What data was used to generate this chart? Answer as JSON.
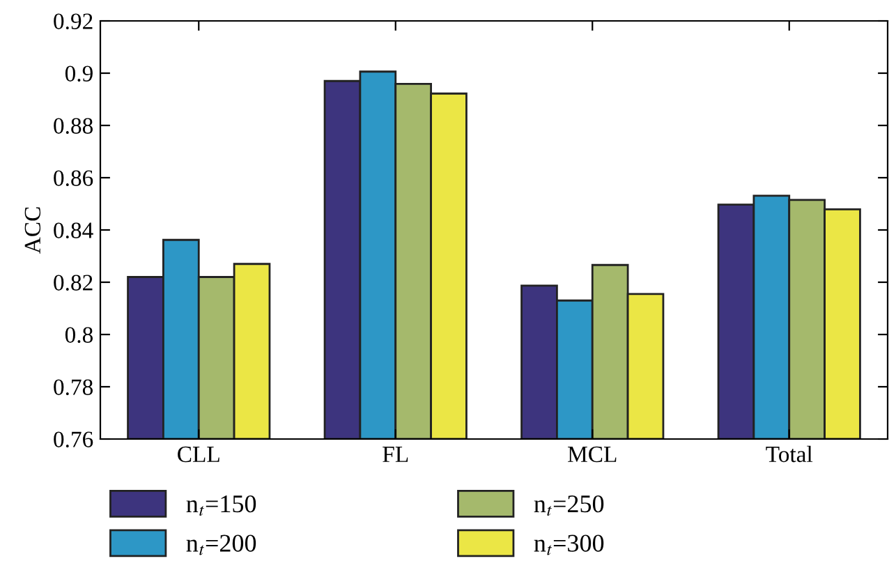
{
  "chart_data": {
    "type": "bar",
    "ylabel": "ACC",
    "categories": [
      "CLL",
      "FL",
      "MCL",
      "Total"
    ],
    "series": [
      {
        "name": "n$_{t}$=150",
        "color": "#3d347e",
        "values": [
          0.822,
          0.897,
          0.8187,
          0.8497
        ]
      },
      {
        "name": "n$_{t}$=200",
        "color": "#2d97c6",
        "values": [
          0.8362,
          0.9006,
          0.813,
          0.8531
        ]
      },
      {
        "name": "n$_{t}$=250",
        "color": "#a5b96c",
        "values": [
          0.822,
          0.8959,
          0.8266,
          0.8515
        ]
      },
      {
        "name": "n$_{t}$=300",
        "color": "#ebe645",
        "values": [
          0.827,
          0.8922,
          0.8155,
          0.8479
        ]
      }
    ],
    "ylim": [
      0.76,
      0.92
    ],
    "yticks": [
      0.76,
      0.78,
      0.8,
      0.82,
      0.84,
      0.86,
      0.88,
      0.9,
      0.92
    ],
    "grid": false,
    "legend": "bottom"
  }
}
